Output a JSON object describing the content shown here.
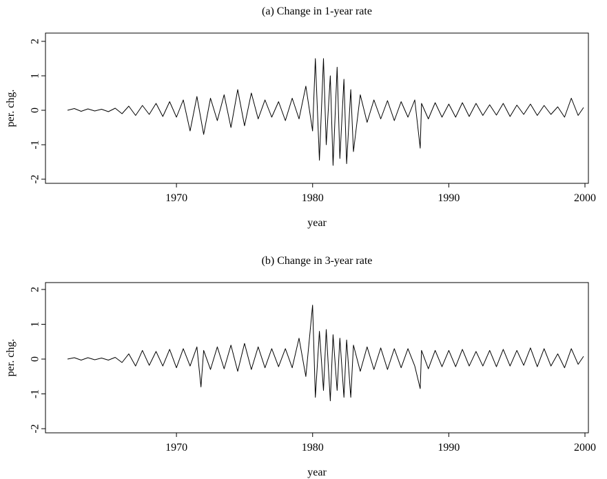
{
  "chart_data": [
    {
      "type": "line",
      "title": "(a) Change in 1-year rate",
      "xlabel": "year",
      "ylabel": "per. chg.",
      "xlim": [
        1962,
        2000
      ],
      "ylim": [
        -2,
        2
      ],
      "xticks": [
        1970,
        1980,
        1990,
        2000
      ],
      "xtick_labels": [
        "1970",
        "1980",
        "1990",
        "2000"
      ],
      "yticks": [
        -2,
        -1,
        0,
        1,
        2
      ],
      "ytick_labels": [
        "-2",
        "-1",
        "0",
        "1",
        "2"
      ],
      "grid": false,
      "series": [
        {
          "x": [
            1962.0,
            1962.5,
            1963.0,
            1963.5,
            1964.0,
            1964.5,
            1965.0,
            1965.5,
            1966.0,
            1966.5,
            1967.0,
            1967.5,
            1968.0,
            1968.5,
            1969.0,
            1969.5,
            1970.0,
            1970.5,
            1971.0,
            1971.5,
            1972.0,
            1972.5,
            1973.0,
            1973.5,
            1974.0,
            1974.5,
            1975.0,
            1975.5,
            1976.0,
            1976.5,
            1977.0,
            1977.5,
            1978.0,
            1978.5,
            1979.0,
            1979.5,
            1980.0,
            1980.2,
            1980.5,
            1980.8,
            1981.0,
            1981.3,
            1981.5,
            1981.8,
            1982.0,
            1982.3,
            1982.5,
            1982.8,
            1983.0,
            1983.5,
            1984.0,
            1984.5,
            1985.0,
            1985.5,
            1986.0,
            1986.5,
            1987.0,
            1987.5,
            1987.9,
            1988.0,
            1988.5,
            1989.0,
            1989.5,
            1990.0,
            1990.5,
            1991.0,
            1991.5,
            1992.0,
            1992.5,
            1993.0,
            1993.5,
            1994.0,
            1994.5,
            1995.0,
            1995.5,
            1996.0,
            1996.5,
            1997.0,
            1997.5,
            1998.0,
            1998.5,
            1999.0,
            1999.5,
            1999.9
          ],
          "y": [
            0.0,
            0.05,
            -0.03,
            0.04,
            -0.02,
            0.03,
            -0.04,
            0.06,
            -0.1,
            0.12,
            -0.15,
            0.14,
            -0.12,
            0.2,
            -0.18,
            0.25,
            -0.2,
            0.3,
            -0.6,
            0.4,
            -0.7,
            0.35,
            -0.3,
            0.45,
            -0.5,
            0.6,
            -0.45,
            0.5,
            -0.25,
            0.3,
            -0.2,
            0.25,
            -0.3,
            0.35,
            -0.25,
            0.7,
            -0.6,
            1.5,
            -1.45,
            1.5,
            -1.0,
            1.0,
            -1.6,
            1.25,
            -1.4,
            0.9,
            -1.55,
            0.6,
            -1.2,
            0.45,
            -0.35,
            0.3,
            -0.25,
            0.28,
            -0.3,
            0.25,
            -0.2,
            0.3,
            -1.1,
            0.2,
            -0.25,
            0.22,
            -0.2,
            0.18,
            -0.2,
            0.22,
            -0.18,
            0.2,
            -0.15,
            0.16,
            -0.14,
            0.2,
            -0.18,
            0.15,
            -0.12,
            0.18,
            -0.15,
            0.14,
            -0.12,
            0.1,
            -0.2,
            0.35,
            -0.15,
            0.08
          ]
        }
      ]
    },
    {
      "type": "line",
      "title": "(b) Change in 3-year rate",
      "xlabel": "year",
      "ylabel": "per. chg.",
      "xlim": [
        1962,
        2000
      ],
      "ylim": [
        -2,
        2
      ],
      "xticks": [
        1970,
        1980,
        1990,
        2000
      ],
      "xtick_labels": [
        "1970",
        "1980",
        "1990",
        "2000"
      ],
      "yticks": [
        -2,
        -1,
        0,
        1,
        2
      ],
      "ytick_labels": [
        "-2",
        "-1",
        "0",
        "1",
        "2"
      ],
      "grid": false,
      "series": [
        {
          "x": [
            1962.0,
            1962.5,
            1963.0,
            1963.5,
            1964.0,
            1964.5,
            1965.0,
            1965.5,
            1966.0,
            1966.5,
            1967.0,
            1967.5,
            1968.0,
            1968.5,
            1969.0,
            1969.5,
            1970.0,
            1970.5,
            1971.0,
            1971.5,
            1971.8,
            1972.0,
            1972.5,
            1973.0,
            1973.5,
            1974.0,
            1974.5,
            1975.0,
            1975.5,
            1976.0,
            1976.5,
            1977.0,
            1977.5,
            1978.0,
            1978.5,
            1979.0,
            1979.5,
            1980.0,
            1980.2,
            1980.5,
            1980.8,
            1981.0,
            1981.3,
            1981.5,
            1981.8,
            1982.0,
            1982.3,
            1982.5,
            1982.8,
            1983.0,
            1983.5,
            1984.0,
            1984.5,
            1985.0,
            1985.5,
            1986.0,
            1986.5,
            1987.0,
            1987.5,
            1987.9,
            1988.0,
            1988.5,
            1989.0,
            1989.5,
            1990.0,
            1990.5,
            1991.0,
            1991.5,
            1992.0,
            1992.5,
            1993.0,
            1993.5,
            1994.0,
            1994.5,
            1995.0,
            1995.5,
            1996.0,
            1996.5,
            1997.0,
            1997.5,
            1998.0,
            1998.5,
            1999.0,
            1999.5,
            1999.9
          ],
          "y": [
            0.0,
            0.04,
            -0.03,
            0.04,
            -0.02,
            0.03,
            -0.03,
            0.05,
            -0.1,
            0.15,
            -0.2,
            0.25,
            -0.18,
            0.22,
            -0.2,
            0.28,
            -0.25,
            0.3,
            -0.2,
            0.35,
            -0.8,
            0.25,
            -0.3,
            0.35,
            -0.28,
            0.4,
            -0.35,
            0.45,
            -0.3,
            0.35,
            -0.25,
            0.3,
            -0.22,
            0.3,
            -0.25,
            0.6,
            -0.5,
            1.55,
            -1.1,
            0.8,
            -0.9,
            0.85,
            -1.2,
            0.7,
            -0.9,
            0.6,
            -1.1,
            0.55,
            -1.1,
            0.4,
            -0.35,
            0.35,
            -0.3,
            0.32,
            -0.3,
            0.3,
            -0.25,
            0.3,
            -0.2,
            -0.85,
            0.25,
            -0.28,
            0.25,
            -0.22,
            0.25,
            -0.22,
            0.28,
            -0.2,
            0.22,
            -0.2,
            0.25,
            -0.22,
            0.28,
            -0.2,
            0.25,
            -0.18,
            0.32,
            -0.22,
            0.3,
            -0.2,
            0.15,
            -0.25,
            0.3,
            -0.15,
            0.08
          ]
        }
      ]
    }
  ]
}
